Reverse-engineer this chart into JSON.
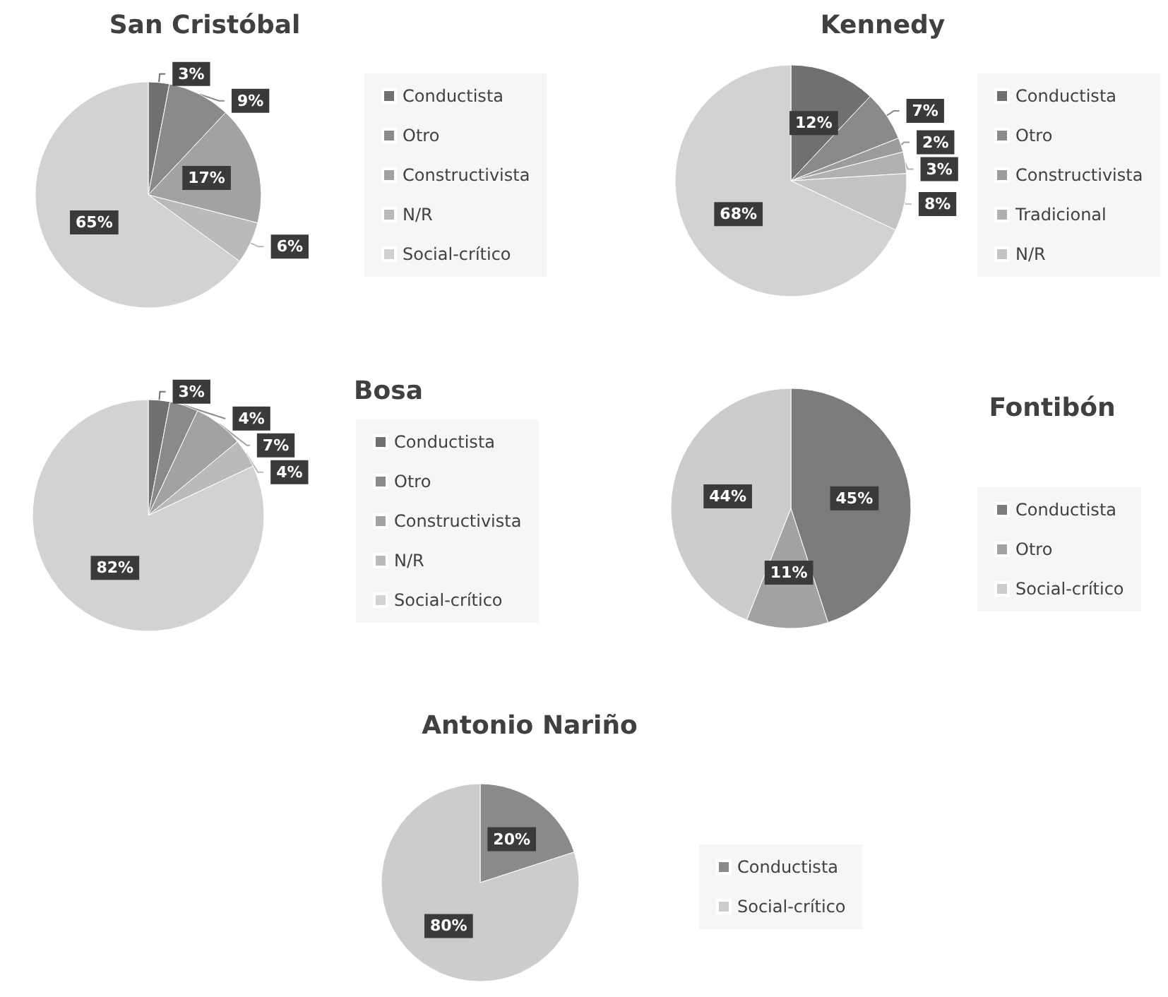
{
  "chart_data": [
    {
      "type": "pie",
      "title": "San Cristóbal",
      "categories": [
        "Conductista",
        "Otro",
        "Constructivista",
        "N/R",
        "Social-crítico"
      ],
      "values": [
        3,
        9,
        17,
        6,
        65
      ],
      "value_labels": [
        "3%",
        "9%",
        "17%",
        "6%",
        "65%"
      ],
      "colors": [
        "#707070",
        "#8a8a8a",
        "#a2a2a2",
        "#bababa",
        "#d2d2d2"
      ],
      "legend": "right"
    },
    {
      "type": "pie",
      "title": "Kennedy",
      "categories": [
        "Conductista",
        "Otro",
        "Constructivista",
        "Tradicional",
        "N/R",
        null
      ],
      "values": [
        12,
        7,
        2,
        3,
        8,
        68
      ],
      "value_labels": [
        "12%",
        "7%",
        "2%",
        "3%",
        "8%",
        "68%"
      ],
      "colors": [
        "#707070",
        "#8a8a8a",
        "#9c9c9c",
        "#b0b0b0",
        "#c4c4c4",
        "#d2d2d2"
      ],
      "legend": "right"
    },
    {
      "type": "pie",
      "title": "Bosa",
      "categories": [
        "Conductista",
        "Otro",
        "Constructivista",
        "N/R",
        "Social-crítico"
      ],
      "values": [
        3,
        4,
        7,
        4,
        82
      ],
      "value_labels": [
        "3%",
        "4%",
        "7%",
        "4%",
        "82%"
      ],
      "colors": [
        "#707070",
        "#8a8a8a",
        "#a2a2a2",
        "#bababa",
        "#d2d2d2"
      ],
      "legend": "right"
    },
    {
      "type": "pie",
      "title": "Fontibón",
      "categories": [
        "Conductista",
        "Otro",
        "Social-crítico"
      ],
      "values": [
        45,
        11,
        44
      ],
      "value_labels": [
        "45%",
        "11%",
        "44%"
      ],
      "colors": [
        "#7c7c7c",
        "#a2a2a2",
        "#cccccc"
      ],
      "legend": "right"
    },
    {
      "type": "pie",
      "title": "Antonio Nariño",
      "categories": [
        "Conductista",
        "Social-crítico"
      ],
      "values": [
        20,
        80
      ],
      "value_labels": [
        "20%",
        "80%"
      ],
      "colors": [
        "#8a8a8a",
        "#cccccc"
      ],
      "legend": "right"
    }
  ]
}
